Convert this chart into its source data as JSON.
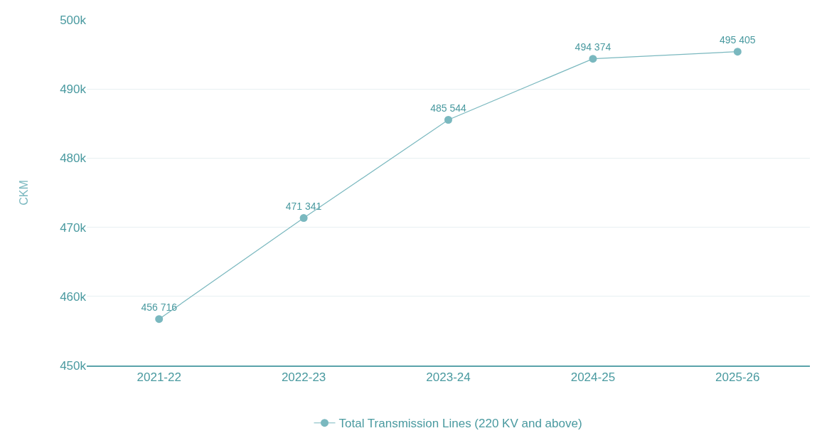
{
  "chart_data": {
    "type": "line",
    "ylabel": "CKM",
    "categories": [
      "2021-22",
      "2022-23",
      "2023-24",
      "2024-25",
      "2025-26"
    ],
    "series": [
      {
        "name": "Total Transmission Lines (220 KV and above)",
        "color": "#7ab8bf",
        "values": [
          456716,
          471341,
          485544,
          494374,
          495405
        ],
        "value_labels": [
          "456 716",
          "471 341",
          "485 544",
          "494 374",
          "495 405"
        ]
      }
    ],
    "ylim": [
      450000,
      500000
    ],
    "yticks": [
      {
        "value": 450000,
        "label": "450k"
      },
      {
        "value": 460000,
        "label": "460k"
      },
      {
        "value": 470000,
        "label": "470k"
      },
      {
        "value": 480000,
        "label": "480k"
      },
      {
        "value": 490000,
        "label": "490k"
      },
      {
        "value": 500000,
        "label": "500k"
      }
    ],
    "grid": "y",
    "legend": "bottom",
    "marker": "circle",
    "line_style": "solid"
  }
}
